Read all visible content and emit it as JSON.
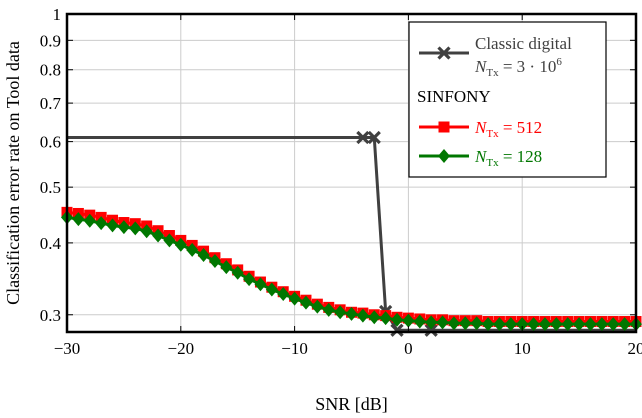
{
  "chart_data": {
    "type": "line",
    "title": "",
    "xlabel": "SNR [dB]",
    "ylabel": "Classification error rate on Tool data",
    "xlim": [
      -30,
      20
    ],
    "ylim": [
      0.28,
      1.0
    ],
    "yscale": "log",
    "grid": true,
    "legend_position": "top-right",
    "x_ticks": [
      -30,
      -20,
      -10,
      0,
      10,
      20
    ],
    "x_tick_labels": [
      "−30",
      "−20",
      "−10",
      "0",
      "10",
      "20"
    ],
    "y_ticks": [
      0.3,
      0.4,
      0.5,
      0.6,
      0.7,
      0.8,
      0.9,
      1.0
    ],
    "y_tick_labels": [
      "0.3",
      "0.4",
      "0.5",
      "0.6",
      "0.7",
      "0.8",
      "0.9",
      "1"
    ],
    "legend": {
      "group_heading": "SINFONY"
    },
    "series": [
      {
        "key": "classic",
        "name": "Classic digital",
        "name_sub_prefix": "N",
        "name_sub": "Tx",
        "name_sub_value": " = 3 · 10",
        "name_sub_exp": "6",
        "color": "#404040",
        "marker": "x",
        "x": [
          -30,
          -4,
          -3,
          -2,
          -1,
          2,
          20
        ],
        "y": [
          0.61,
          0.61,
          0.61,
          0.304,
          0.282,
          0.282,
          0.282
        ]
      },
      {
        "key": "n512",
        "name_sub_prefix": "N",
        "name_sub": "Tx",
        "name_sub_value": " = 512",
        "color": "#ff0000",
        "marker": "square",
        "x": [
          -30,
          -29,
          -28,
          -27,
          -26,
          -25,
          -24,
          -23,
          -22,
          -21,
          -20,
          -19,
          -18,
          -17,
          -16,
          -15,
          -14,
          -13,
          -12,
          -11,
          -10,
          -9,
          -8,
          -7,
          -6,
          -5,
          -4,
          -3,
          -2,
          -1,
          0,
          1,
          2,
          3,
          4,
          5,
          6,
          7,
          8,
          9,
          10,
          11,
          12,
          13,
          14,
          15,
          16,
          17,
          18,
          19,
          20
        ],
        "y": [
          0.452,
          0.45,
          0.447,
          0.443,
          0.438,
          0.434,
          0.432,
          0.428,
          0.42,
          0.412,
          0.404,
          0.396,
          0.387,
          0.377,
          0.368,
          0.359,
          0.35,
          0.342,
          0.335,
          0.329,
          0.323,
          0.318,
          0.313,
          0.309,
          0.306,
          0.303,
          0.302,
          0.3,
          0.299,
          0.297,
          0.296,
          0.295,
          0.294,
          0.294,
          0.293,
          0.293,
          0.293,
          0.292,
          0.292,
          0.292,
          0.292,
          0.292,
          0.292,
          0.292,
          0.292,
          0.292,
          0.292,
          0.292,
          0.292,
          0.292,
          0.292
        ]
      },
      {
        "key": "n128",
        "name_sub_prefix": "N",
        "name_sub": "Tx",
        "name_sub_value": " = 128",
        "color": "#007700",
        "marker": "diamond",
        "x": [
          -30,
          -29,
          -28,
          -27,
          -26,
          -25,
          -24,
          -23,
          -22,
          -21,
          -20,
          -19,
          -18,
          -17,
          -16,
          -15,
          -14,
          -13,
          -12,
          -11,
          -10,
          -9,
          -8,
          -7,
          -6,
          -5,
          -4,
          -3,
          -2,
          -1,
          0,
          1,
          2,
          3,
          4,
          5,
          6,
          7,
          8,
          9,
          10,
          11,
          12,
          13,
          14,
          15,
          16,
          17,
          18,
          19,
          20
        ],
        "y": [
          0.443,
          0.44,
          0.437,
          0.433,
          0.429,
          0.426,
          0.424,
          0.419,
          0.412,
          0.404,
          0.397,
          0.389,
          0.381,
          0.372,
          0.363,
          0.355,
          0.346,
          0.339,
          0.332,
          0.326,
          0.32,
          0.315,
          0.31,
          0.306,
          0.303,
          0.301,
          0.299,
          0.297,
          0.296,
          0.294,
          0.293,
          0.292,
          0.291,
          0.291,
          0.29,
          0.29,
          0.29,
          0.289,
          0.289,
          0.289,
          0.289,
          0.289,
          0.289,
          0.289,
          0.289,
          0.289,
          0.289,
          0.289,
          0.289,
          0.289,
          0.289
        ]
      }
    ]
  }
}
